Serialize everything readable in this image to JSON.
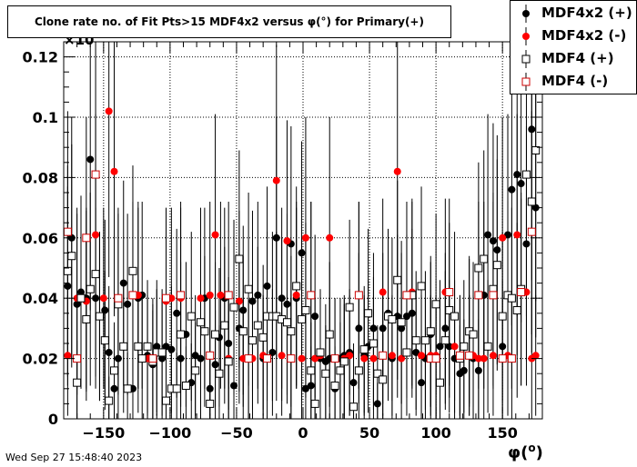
{
  "timestamp": "Wed Sep 27 15:48:40 2023",
  "chart_data": {
    "type": "scatter",
    "title": "Clone rate no. of Fit Pts>15 MDF4x2 versus φ(°) for Primary(+)",
    "xlabel": "φ(°)",
    "xlabel_main": "φ(",
    "xlabel_sup": "o",
    "xlabel_end": ")",
    "ylabel": "",
    "xlim": [
      -180,
      180
    ],
    "ylim": [
      0,
      0.125
    ],
    "x_ticks": [
      -150,
      -100,
      -50,
      0,
      50,
      100,
      150
    ],
    "x_tick_labels": [
      "−150",
      "−100",
      "−50",
      "0",
      "50",
      "100",
      "150"
    ],
    "y_ticks": [
      0,
      0.02,
      0.04,
      0.06,
      0.08,
      0.1,
      0.12
    ],
    "y_tick_labels": [
      "0",
      "0.02",
      "0.04",
      "0.06",
      "0.08",
      "0.1",
      "0.12"
    ],
    "y_exponent_label": "×10",
    "grid": true,
    "legend_position": "top-right",
    "series": [
      {
        "name": "MDF4x2 (+)",
        "color": "#000000",
        "marker": "filled-circle",
        "x": [
          -177,
          -174,
          -170,
          -167,
          -163,
          -160,
          -156,
          -153,
          -149,
          -146,
          -142,
          -139,
          -135,
          -132,
          -128,
          -124,
          -121,
          -117,
          -113,
          -110,
          -106,
          -103,
          -99,
          -95,
          -92,
          -88,
          -84,
          -81,
          -77,
          -74,
          -70,
          -66,
          -63,
          -59,
          -56,
          -52,
          -48,
          -45,
          -41,
          -38,
          -34,
          -30,
          -27,
          -23,
          -20,
          -16,
          -12,
          -9,
          -5,
          -1,
          2,
          6,
          9,
          13,
          17,
          20,
          24,
          28,
          31,
          35,
          38,
          42,
          46,
          49,
          53,
          56,
          60,
          64,
          67,
          71,
          74,
          78,
          82,
          85,
          89,
          92,
          96,
          100,
          103,
          107,
          110,
          114,
          118,
          121,
          125,
          128,
          132,
          136,
          139,
          143,
          146,
          150,
          154,
          157,
          161,
          164,
          168,
          172,
          175
        ],
        "y": [
          0.044,
          0.06,
          0.038,
          0.042,
          0.04,
          0.086,
          0.04,
          0.034,
          0.036,
          0.022,
          0.01,
          0.02,
          0.045,
          0.038,
          0.01,
          0.04,
          0.041,
          0.021,
          0.018,
          0.024,
          0.02,
          0.024,
          0.023,
          0.035,
          0.02,
          0.028,
          0.012,
          0.021,
          0.02,
          0.04,
          0.01,
          0.018,
          0.027,
          0.04,
          0.025,
          0.011,
          0.03,
          0.036,
          0.02,
          0.039,
          0.041,
          0.02,
          0.044,
          0.022,
          0.06,
          0.04,
          0.038,
          0.058,
          0.04,
          0.055,
          0.01,
          0.011,
          0.034,
          0.02,
          0.019,
          0.02,
          0.01,
          0.02,
          0.021,
          0.022,
          0.012,
          0.03,
          0.021,
          0.024,
          0.03,
          0.005,
          0.03,
          0.035,
          0.02,
          0.034,
          0.03,
          0.034,
          0.035,
          0.022,
          0.012,
          0.02,
          0.028,
          0.02,
          0.024,
          0.03,
          0.024,
          0.02,
          0.015,
          0.016,
          0.029,
          0.02,
          0.016,
          0.041,
          0.061,
          0.059,
          0.056,
          0.024,
          0.061,
          0.076,
          0.081,
          0.078,
          0.058,
          0.096,
          0.07
        ],
        "err": [
          0.033,
          0.04,
          0.03,
          0.032,
          0.03,
          0.05,
          0.03,
          0.028,
          0.03,
          0.022,
          0.012,
          0.02,
          0.034,
          0.03,
          0.012,
          0.03,
          0.031,
          0.02,
          0.018,
          0.022,
          0.02,
          0.022,
          0.021,
          0.028,
          0.02,
          0.024,
          0.013,
          0.02,
          0.02,
          0.03,
          0.012,
          0.018,
          0.023,
          0.03,
          0.022,
          0.013,
          0.025,
          0.028,
          0.02,
          0.03,
          0.031,
          0.02,
          0.033,
          0.021,
          0.04,
          0.03,
          0.03,
          0.039,
          0.03,
          0.037,
          0.012,
          0.013,
          0.027,
          0.02,
          0.019,
          0.02,
          0.012,
          0.02,
          0.02,
          0.021,
          0.013,
          0.025,
          0.02,
          0.022,
          0.025,
          0.007,
          0.025,
          0.028,
          0.02,
          0.027,
          0.025,
          0.027,
          0.028,
          0.021,
          0.013,
          0.02,
          0.024,
          0.02,
          0.022,
          0.025,
          0.022,
          0.02,
          0.016,
          0.017,
          0.024,
          0.02,
          0.017,
          0.031,
          0.04,
          0.039,
          0.038,
          0.022,
          0.04,
          0.045,
          0.047,
          0.046,
          0.039,
          0.05,
          0.043
        ]
      },
      {
        "name": "MDF4x2 (-)",
        "color": "#ff0000",
        "marker": "filled-circle",
        "x": [
          -177,
          -170,
          -163,
          -156,
          -150,
          -146,
          -142,
          -128,
          -124,
          -117,
          -103,
          -99,
          -92,
          -77,
          -70,
          -66,
          -62,
          -56,
          -48,
          -45,
          -38,
          -30,
          -20,
          -16,
          -12,
          -9,
          -5,
          -1,
          2,
          6,
          9,
          13,
          20,
          24,
          31,
          35,
          42,
          46,
          53,
          60,
          67,
          71,
          74,
          82,
          89,
          96,
          100,
          107,
          114,
          118,
          125,
          128,
          132,
          136,
          143,
          150,
          154,
          161,
          168,
          172,
          175
        ],
        "y": [
          0.021,
          0.04,
          0.039,
          0.061,
          0.04,
          0.102,
          0.082,
          0.041,
          0.041,
          0.02,
          0.039,
          0.04,
          0.04,
          0.04,
          0.041,
          0.061,
          0.041,
          0.02,
          0.039,
          0.02,
          0.02,
          0.021,
          0.079,
          0.021,
          0.059,
          0.02,
          0.041,
          0.02,
          0.06,
          0.041,
          0.02,
          0.021,
          0.06,
          0.02,
          0.02,
          0.021,
          0.041,
          0.02,
          0.02,
          0.042,
          0.021,
          0.082,
          0.02,
          0.042,
          0.021,
          0.021,
          0.021,
          0.042,
          0.024,
          0.021,
          0.021,
          0.021,
          0.02,
          0.02,
          0.021,
          0.06,
          0.021,
          0.061,
          0.042,
          0.02,
          0.021
        ],
        "err": [
          0.02,
          0.03,
          0.03,
          0.04,
          0.03,
          0.055,
          0.048,
          0.031,
          0.031,
          0.02,
          0.03,
          0.03,
          0.03,
          0.03,
          0.031,
          0.04,
          0.031,
          0.02,
          0.03,
          0.02,
          0.02,
          0.02,
          0.045,
          0.02,
          0.04,
          0.02,
          0.031,
          0.02,
          0.04,
          0.031,
          0.02,
          0.02,
          0.04,
          0.02,
          0.02,
          0.02,
          0.031,
          0.02,
          0.02,
          0.031,
          0.02,
          0.048,
          0.02,
          0.031,
          0.02,
          0.02,
          0.02,
          0.031,
          0.022,
          0.02,
          0.02,
          0.02,
          0.02,
          0.02,
          0.02,
          0.04,
          0.02,
          0.04,
          0.031,
          0.02,
          0.02
        ]
      },
      {
        "name": "MDF4 (+)",
        "color": "#000000",
        "marker": "open-square",
        "x": [
          -177,
          -174,
          -170,
          -167,
          -163,
          -160,
          -156,
          -153,
          -149,
          -146,
          -142,
          -139,
          -135,
          -132,
          -128,
          -124,
          -121,
          -117,
          -113,
          -110,
          -106,
          -103,
          -99,
          -95,
          -92,
          -88,
          -84,
          -81,
          -77,
          -74,
          -70,
          -66,
          -63,
          -59,
          -56,
          -52,
          -48,
          -45,
          -41,
          -38,
          -34,
          -30,
          -27,
          -23,
          -20,
          -16,
          -12,
          -9,
          -5,
          -1,
          2,
          6,
          9,
          13,
          17,
          20,
          24,
          28,
          31,
          35,
          38,
          42,
          46,
          49,
          53,
          56,
          60,
          64,
          67,
          71,
          74,
          78,
          82,
          85,
          89,
          92,
          96,
          100,
          103,
          107,
          110,
          114,
          118,
          121,
          125,
          128,
          132,
          136,
          139,
          143,
          146,
          150,
          154,
          157,
          161,
          164,
          168,
          172,
          175
        ],
        "y": [
          0.049,
          0.054,
          0.012,
          0.04,
          0.033,
          0.043,
          0.048,
          0.034,
          0.026,
          0.006,
          0.016,
          0.038,
          0.024,
          0.01,
          0.049,
          0.024,
          0.02,
          0.024,
          0.019,
          0.022,
          0.022,
          0.006,
          0.01,
          0.01,
          0.028,
          0.011,
          0.034,
          0.016,
          0.032,
          0.029,
          0.005,
          0.028,
          0.015,
          0.031,
          0.019,
          0.037,
          0.053,
          0.029,
          0.043,
          0.026,
          0.031,
          0.027,
          0.034,
          0.034,
          0.034,
          0.033,
          0.032,
          0.029,
          0.044,
          0.033,
          0.036,
          0.016,
          0.005,
          0.022,
          0.015,
          0.028,
          0.011,
          0.016,
          0.019,
          0.037,
          0.004,
          0.016,
          0.023,
          0.035,
          0.025,
          0.015,
          0.013,
          0.034,
          0.033,
          0.046,
          0.032,
          0.022,
          0.041,
          0.026,
          0.044,
          0.026,
          0.029,
          0.038,
          0.012,
          0.026,
          0.036,
          0.034,
          0.02,
          0.024,
          0.029,
          0.028,
          0.05,
          0.053,
          0.024,
          0.043,
          0.051,
          0.034,
          0.041,
          0.04,
          0.036,
          0.043,
          0.081,
          0.072,
          0.089
        ],
        "err": [
          0.035,
          0.037,
          0.014,
          0.03,
          0.027,
          0.032,
          0.034,
          0.028,
          0.023,
          0.008,
          0.016,
          0.03,
          0.022,
          0.012,
          0.035,
          0.022,
          0.02,
          0.022,
          0.019,
          0.021,
          0.021,
          0.008,
          0.012,
          0.012,
          0.024,
          0.013,
          0.028,
          0.016,
          0.027,
          0.025,
          0.007,
          0.024,
          0.016,
          0.026,
          0.019,
          0.029,
          0.036,
          0.025,
          0.032,
          0.023,
          0.026,
          0.024,
          0.028,
          0.028,
          0.028,
          0.027,
          0.027,
          0.025,
          0.033,
          0.027,
          0.029,
          0.016,
          0.007,
          0.021,
          0.016,
          0.024,
          0.013,
          0.016,
          0.019,
          0.029,
          0.006,
          0.016,
          0.021,
          0.028,
          0.022,
          0.016,
          0.015,
          0.028,
          0.027,
          0.033,
          0.027,
          0.021,
          0.031,
          0.023,
          0.033,
          0.023,
          0.025,
          0.03,
          0.014,
          0.023,
          0.029,
          0.028,
          0.02,
          0.022,
          0.025,
          0.024,
          0.035,
          0.036,
          0.022,
          0.032,
          0.035,
          0.028,
          0.031,
          0.03,
          0.029,
          0.032,
          0.047,
          0.044,
          0.05
        ]
      },
      {
        "name": "MDF4 (-)",
        "color": "#cc0000",
        "marker": "open-square",
        "x": [
          -177,
          -170,
          -163,
          -156,
          -139,
          -128,
          -113,
          -103,
          -92,
          -70,
          -56,
          -41,
          -27,
          -9,
          6,
          24,
          42,
          60,
          78,
          96,
          100,
          110,
          118,
          125,
          132,
          143,
          150,
          157,
          164,
          172
        ],
        "y": [
          0.062,
          0.02,
          0.06,
          0.081,
          0.04,
          0.041,
          0.02,
          0.04,
          0.041,
          0.021,
          0.041,
          0.02,
          0.02,
          0.02,
          0.041,
          0.02,
          0.041,
          0.021,
          0.041,
          0.02,
          0.02,
          0.042,
          0.021,
          0.021,
          0.041,
          0.041,
          0.02,
          0.02,
          0.042,
          0.062
        ],
        "err": [
          0.04,
          0.02,
          0.04,
          0.047,
          0.03,
          0.031,
          0.02,
          0.03,
          0.031,
          0.02,
          0.031,
          0.02,
          0.02,
          0.02,
          0.031,
          0.02,
          0.031,
          0.02,
          0.031,
          0.02,
          0.02,
          0.031,
          0.02,
          0.02,
          0.031,
          0.031,
          0.02,
          0.02,
          0.031,
          0.04
        ]
      }
    ]
  }
}
